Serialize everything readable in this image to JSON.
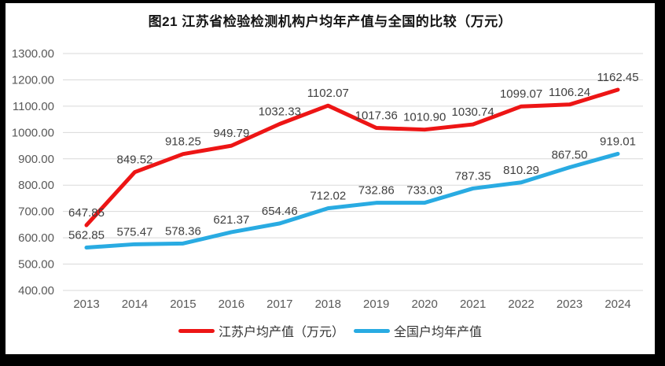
{
  "title": "图21  江苏省检验检测机构户均年产值与全国的比较（万元）",
  "chart_data": {
    "type": "line",
    "title": "图21  江苏省检验检测机构户均年产值与全国的比较（万元）",
    "categories": [
      "2013",
      "2014",
      "2015",
      "2016",
      "2017",
      "2018",
      "2019",
      "2020",
      "2021",
      "2022",
      "2023",
      "2024"
    ],
    "series": [
      {
        "id": "jiangsu",
        "name": "江苏户均产值（万元）",
        "color": "#ed1515",
        "values": [
          647.85,
          849.52,
          918.25,
          949.79,
          1032.33,
          1102.07,
          1017.36,
          1010.9,
          1030.74,
          1099.07,
          1106.24,
          1162.45
        ]
      },
      {
        "id": "national",
        "name": "全国户均年产值",
        "color": "#29abe2",
        "values": [
          562.85,
          575.47,
          578.36,
          621.37,
          654.46,
          712.02,
          732.86,
          733.03,
          787.35,
          810.29,
          867.5,
          919.01
        ]
      }
    ],
    "xlabel": "",
    "ylabel": "",
    "ylim": [
      400,
      1300
    ],
    "ytick_step": 100,
    "ytick_labels": [
      "400.00",
      "500.00",
      "600.00",
      "700.00",
      "800.00",
      "900.00",
      "1000.00",
      "1100.00",
      "1200.00",
      "1300.00"
    ],
    "grid": true,
    "gridline_color": "#d9d9d9",
    "axis_label_color": "#595959",
    "data_label_color": "#3f3f3f",
    "data_label_decimals": 2,
    "line_width": 5,
    "legend_position": "bottom"
  }
}
